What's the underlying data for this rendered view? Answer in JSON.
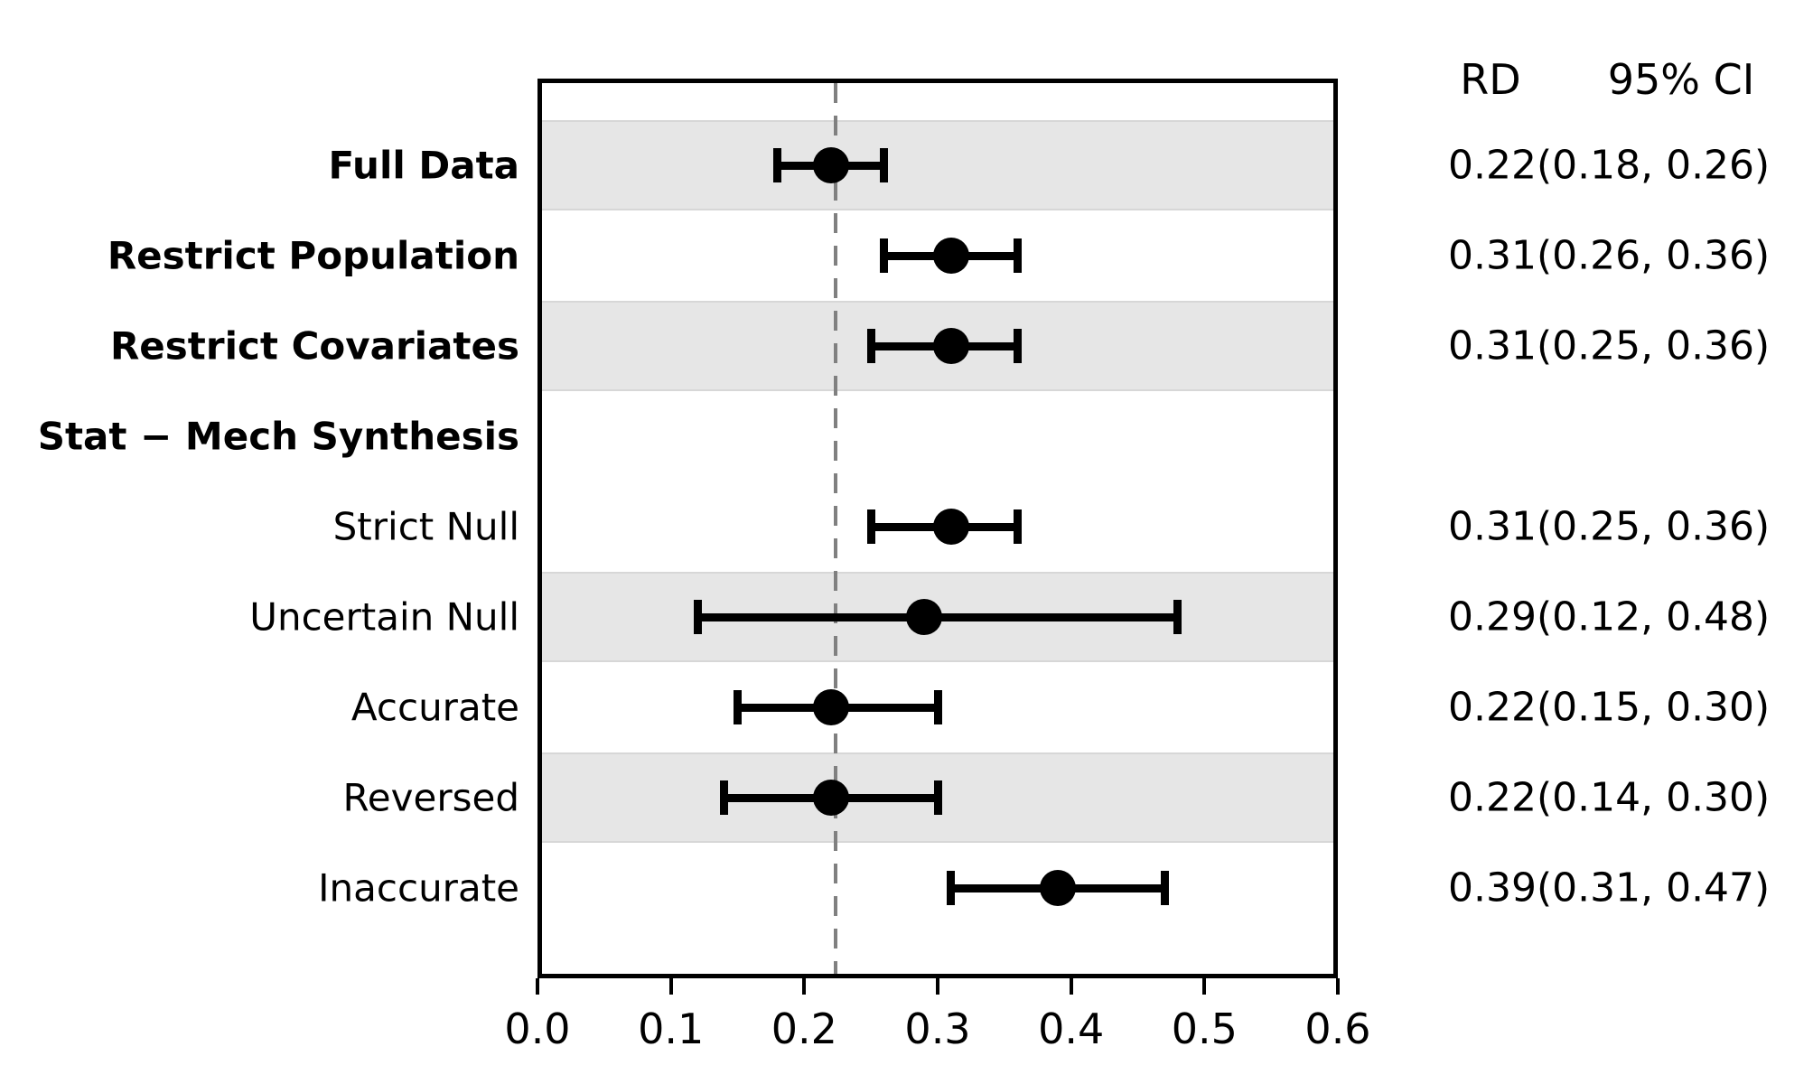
{
  "chart_data": {
    "type": "scatter",
    "variant": "forest-plot",
    "title": "",
    "xlabel": "",
    "ylabel": "",
    "xlim": [
      0.0,
      0.6
    ],
    "x_ticks": [
      "0.0",
      "0.1",
      "0.2",
      "0.3",
      "0.4",
      "0.5",
      "0.6"
    ],
    "x_tick_values": [
      0.0,
      0.1,
      0.2,
      0.3,
      0.4,
      0.5,
      0.6
    ],
    "grid": false,
    "legend": "none",
    "reference_line": {
      "x": 0.22,
      "style": "dashed",
      "color": "#808080"
    },
    "columns": {
      "rd_header": "RD",
      "ci_header": "95% CI"
    },
    "rows": [
      {
        "label": "Full Data",
        "bold": true,
        "header_only": false,
        "shaded": true,
        "rd": 0.22,
        "ci_lo": 0.18,
        "ci_hi": 0.26,
        "value_text": "0.22(0.18, 0.26)"
      },
      {
        "label": "Restrict Population",
        "bold": true,
        "header_only": false,
        "shaded": false,
        "rd": 0.31,
        "ci_lo": 0.26,
        "ci_hi": 0.36,
        "value_text": "0.31(0.26, 0.36)"
      },
      {
        "label": "Restrict Covariates",
        "bold": true,
        "header_only": false,
        "shaded": true,
        "rd": 0.31,
        "ci_lo": 0.25,
        "ci_hi": 0.36,
        "value_text": "0.31(0.25, 0.36)"
      },
      {
        "label": "Stat − Mech Synthesis",
        "bold": true,
        "header_only": true,
        "shaded": false,
        "rd": null,
        "ci_lo": null,
        "ci_hi": null,
        "value_text": ""
      },
      {
        "label": "Strict Null",
        "bold": false,
        "header_only": false,
        "shaded": false,
        "rd": 0.31,
        "ci_lo": 0.25,
        "ci_hi": 0.36,
        "value_text": "0.31(0.25, 0.36)"
      },
      {
        "label": "Uncertain Null",
        "bold": false,
        "header_only": false,
        "shaded": true,
        "rd": 0.29,
        "ci_lo": 0.12,
        "ci_hi": 0.48,
        "value_text": "0.29(0.12, 0.48)"
      },
      {
        "label": "Accurate",
        "bold": false,
        "header_only": false,
        "shaded": false,
        "rd": 0.22,
        "ci_lo": 0.15,
        "ci_hi": 0.3,
        "value_text": "0.22(0.15, 0.30)"
      },
      {
        "label": "Reversed",
        "bold": false,
        "header_only": false,
        "shaded": true,
        "rd": 0.22,
        "ci_lo": 0.14,
        "ci_hi": 0.3,
        "value_text": "0.22(0.14, 0.30)"
      },
      {
        "label": "Inaccurate",
        "bold": false,
        "header_only": false,
        "shaded": false,
        "rd": 0.39,
        "ci_lo": 0.31,
        "ci_hi": 0.47,
        "value_text": "0.39(0.31, 0.47)"
      }
    ],
    "colors": {
      "marker": "#000000",
      "band": "#e6e6e6",
      "ref_line": "#808080",
      "spine": "#000000",
      "text": "#000000"
    }
  }
}
